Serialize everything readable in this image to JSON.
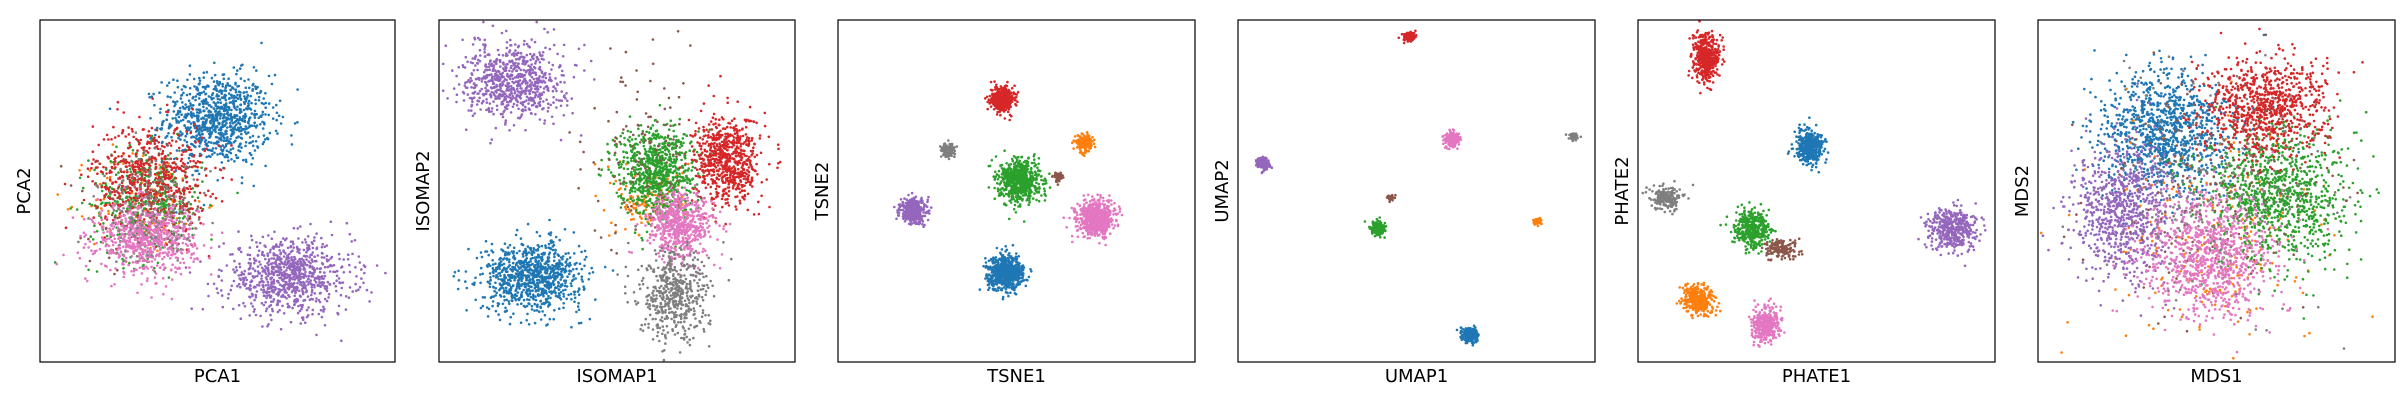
{
  "colors": [
    "#1f77b4",
    "#ff7f0e",
    "#2ca02c",
    "#d62728",
    "#9467bd",
    "#8c564b",
    "#e377c2",
    "#7f7f7f"
  ],
  "chart_data": [
    {
      "type": "scatter",
      "xlabel": "PCA1",
      "ylabel": "PCA2",
      "xlim": [
        0,
        100
      ],
      "ylim": [
        0,
        100
      ],
      "grid": false,
      "clusters": [
        {
          "cx": 50,
          "cy": 71,
          "sx": 7.5,
          "sy": 6.5,
          "n": 900
        },
        {
          "cx": 30,
          "cy": 47,
          "sx": 8,
          "sy": 8,
          "n": 120
        },
        {
          "cx": 30,
          "cy": 46,
          "sx": 8,
          "sy": 8,
          "n": 420
        },
        {
          "cx": 31,
          "cy": 54,
          "sx": 8,
          "sy": 8,
          "n": 620
        },
        {
          "cx": 70,
          "cy": 25,
          "sx": 9,
          "sy": 5.5,
          "n": 850
        },
        {
          "cx": 30,
          "cy": 44,
          "sx": 8,
          "sy": 8,
          "n": 120
        },
        {
          "cx": 30,
          "cy": 36,
          "sx": 7,
          "sy": 5,
          "n": 700
        },
        {
          "cx": 32,
          "cy": 45,
          "sx": 8,
          "sy": 8,
          "n": 140
        }
      ]
    },
    {
      "type": "scatter",
      "xlabel": "ISOMAP1",
      "ylabel": "ISOMAP2",
      "xlim": [
        0,
        100
      ],
      "ylim": [
        0,
        100
      ],
      "grid": false,
      "clusters": [
        {
          "cx": 26,
          "cy": 25,
          "sx": 7,
          "sy": 5,
          "n": 900
        },
        {
          "cx": 60,
          "cy": 47,
          "sx": 5,
          "sy": 5,
          "n": 160
        },
        {
          "cx": 61,
          "cy": 56,
          "sx": 5.5,
          "sy": 6.5,
          "n": 820
        },
        {
          "cx": 81,
          "cy": 59,
          "sx": 4.5,
          "sy": 6.5,
          "n": 700
        },
        {
          "cx": 21,
          "cy": 82,
          "sx": 7,
          "sy": 5.5,
          "n": 750
        },
        {
          "cx": 58,
          "cy": 62,
          "sx": 8,
          "sy": 14,
          "n": 120
        },
        {
          "cx": 68,
          "cy": 40,
          "sx": 4.5,
          "sy": 5,
          "n": 600
        },
        {
          "cx": 66,
          "cy": 19,
          "sx": 5,
          "sy": 6.5,
          "n": 500
        }
      ]
    },
    {
      "type": "scatter",
      "xlabel": "TSNE1",
      "ylabel": "TSNE2",
      "xlim": [
        0,
        100
      ],
      "ylim": [
        0,
        100
      ],
      "grid": false,
      "clusters": [
        {
          "cx": 47,
          "cy": 26,
          "sx": 2.5,
          "sy": 2.5,
          "n": 650
        },
        {
          "cx": 69,
          "cy": 64,
          "sx": 1.2,
          "sy": 1.2,
          "n": 160
        },
        {
          "cx": 51,
          "cy": 53,
          "sx": 2.8,
          "sy": 3,
          "n": 700
        },
        {
          "cx": 46,
          "cy": 77,
          "sx": 1.6,
          "sy": 1.7,
          "n": 450
        },
        {
          "cx": 21,
          "cy": 44,
          "sx": 1.8,
          "sy": 1.8,
          "n": 400
        },
        {
          "cx": 62,
          "cy": 54,
          "sx": 0.8,
          "sy": 0.8,
          "n": 40
        },
        {
          "cx": 72,
          "cy": 42,
          "sx": 2.5,
          "sy": 2.5,
          "n": 650
        },
        {
          "cx": 31,
          "cy": 62,
          "sx": 1,
          "sy": 1,
          "n": 100
        }
      ]
    },
    {
      "type": "scatter",
      "xlabel": "UMAP1",
      "ylabel": "UMAP2",
      "xlim": [
        0,
        100
      ],
      "ylim": [
        0,
        100
      ],
      "grid": false,
      "clusters": [
        {
          "cx": 65,
          "cy": 8,
          "sx": 1,
          "sy": 1,
          "n": 300
        },
        {
          "cx": 84,
          "cy": 41,
          "sx": 0.5,
          "sy": 0.5,
          "n": 70
        },
        {
          "cx": 39,
          "cy": 39,
          "sx": 1,
          "sy": 1,
          "n": 220
        },
        {
          "cx": 48,
          "cy": 95,
          "sx": 0.8,
          "sy": 0.6,
          "n": 200
        },
        {
          "cx": 7,
          "cy": 58,
          "sx": 0.8,
          "sy": 0.8,
          "n": 200
        },
        {
          "cx": 43,
          "cy": 48,
          "sx": 0.5,
          "sy": 0.6,
          "n": 30
        },
        {
          "cx": 60,
          "cy": 65,
          "sx": 1,
          "sy": 1,
          "n": 240
        },
        {
          "cx": 94,
          "cy": 66,
          "sx": 0.6,
          "sy": 0.5,
          "n": 60
        }
      ]
    },
    {
      "type": "scatter",
      "xlabel": "PHATE1",
      "ylabel": "PHATE2",
      "xlim": [
        0,
        100
      ],
      "ylim": [
        0,
        100
      ],
      "grid": false,
      "clusters": [
        {
          "cx": 48,
          "cy": 63,
          "sx": 2,
          "sy": 2.5,
          "n": 420
        },
        {
          "cx": 17,
          "cy": 18,
          "sx": 2.2,
          "sy": 2.2,
          "n": 330
        },
        {
          "cx": 32,
          "cy": 39,
          "sx": 2.5,
          "sy": 2.5,
          "n": 400
        },
        {
          "cx": 19,
          "cy": 89,
          "sx": 1.8,
          "sy": 3.5,
          "n": 450
        },
        {
          "cx": 88,
          "cy": 39,
          "sx": 3.5,
          "sy": 3,
          "n": 420
        },
        {
          "cx": 40,
          "cy": 33,
          "sx": 2.5,
          "sy": 1.5,
          "n": 160
        },
        {
          "cx": 36,
          "cy": 11,
          "sx": 2,
          "sy": 2.5,
          "n": 320
        },
        {
          "cx": 8,
          "cy": 48,
          "sx": 2.2,
          "sy": 1.6,
          "n": 200
        }
      ]
    },
    {
      "type": "scatter",
      "xlabel": "MDS1",
      "ylabel": "MDS2",
      "xlim": [
        0,
        100
      ],
      "ylim": [
        0,
        100
      ],
      "grid": false,
      "clusters": [
        {
          "cx": 35,
          "cy": 67,
          "sx": 9,
          "sy": 9,
          "n": 1100
        },
        {
          "cx": 50,
          "cy": 38,
          "sx": 16,
          "sy": 16,
          "n": 220
        },
        {
          "cx": 67,
          "cy": 48,
          "sx": 10,
          "sy": 10,
          "n": 1000
        },
        {
          "cx": 63,
          "cy": 74,
          "sx": 8.5,
          "sy": 7.5,
          "n": 850
        },
        {
          "cx": 24,
          "cy": 44,
          "sx": 7,
          "sy": 10,
          "n": 800
        },
        {
          "cx": 50,
          "cy": 52,
          "sx": 16,
          "sy": 16,
          "n": 180
        },
        {
          "cx": 48,
          "cy": 31,
          "sx": 9,
          "sy": 9,
          "n": 950
        },
        {
          "cx": 50,
          "cy": 50,
          "sx": 16,
          "sy": 16,
          "n": 180
        }
      ]
    }
  ]
}
